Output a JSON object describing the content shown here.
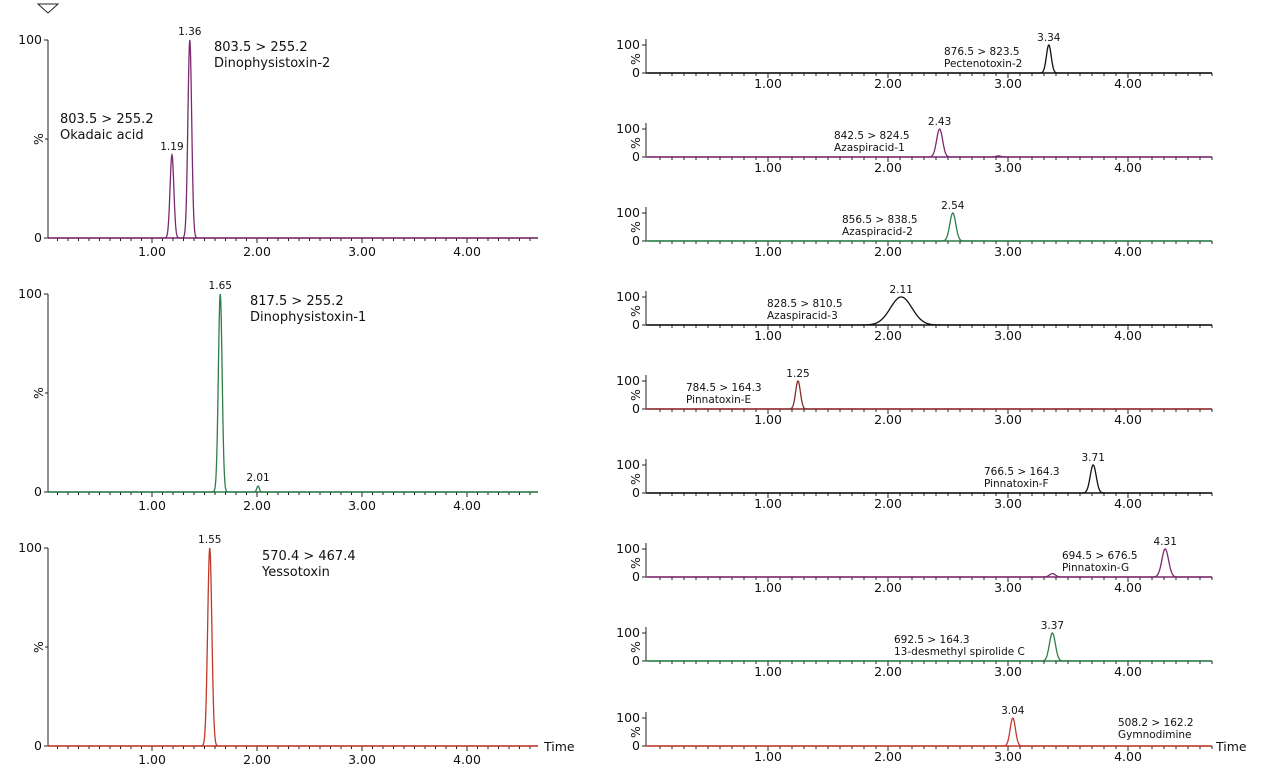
{
  "axis": {
    "x_tick_labels": [
      "1.00",
      "2.00",
      "3.00",
      "4.00"
    ],
    "y_max_label": "100",
    "y_zero_label": "0",
    "y_unit_label": "%",
    "x_title": "Time"
  },
  "chart_data": [
    {
      "type": "line",
      "x_range": [
        0,
        4.7
      ],
      "y_range": [
        0,
        100
      ],
      "annotations": [
        {
          "transition": "803.5 > 255.2",
          "compound": "Dinophysistoxin-2"
        },
        {
          "transition": "803.5 > 255.2",
          "compound": "Okadaic acid"
        }
      ],
      "peaks": [
        {
          "rt": 1.36,
          "rt_label": "1.36",
          "height": 100,
          "width": 0.018,
          "color": "#7a2a6e"
        },
        {
          "rt": 1.19,
          "rt_label": "1.19",
          "height": 42,
          "width": 0.018,
          "color": "#7a2a6e"
        }
      ],
      "baseline_color": "#7a2a6e"
    },
    {
      "type": "line",
      "x_range": [
        0,
        4.7
      ],
      "y_range": [
        0,
        100
      ],
      "annotations": [
        {
          "transition": "817.5 > 255.2",
          "compound": "Dinophysistoxin-1"
        }
      ],
      "peaks": [
        {
          "rt": 1.65,
          "rt_label": "1.65",
          "height": 100,
          "width": 0.018,
          "color": "#2e7d4a"
        },
        {
          "rt": 2.01,
          "rt_label": "2.01",
          "height": 3,
          "width": 0.012,
          "color": "#2e7d4a"
        }
      ],
      "baseline_color": "#2e7d4a"
    },
    {
      "type": "line",
      "x_range": [
        0,
        4.7
      ],
      "y_range": [
        0,
        100
      ],
      "annotations": [
        {
          "transition": "570.4 > 467.4",
          "compound": "Yessotoxin"
        }
      ],
      "peaks": [
        {
          "rt": 1.55,
          "rt_label": "1.55",
          "height": 100,
          "width": 0.02,
          "color": "#c0392b"
        }
      ],
      "baseline_color": "#c0392b"
    },
    {
      "type": "line",
      "x_range": [
        0,
        4.7
      ],
      "y_range": [
        0,
        100
      ],
      "annotations": [
        {
          "transition": "876.5 > 823.5",
          "compound": "Pectenotoxin-2"
        }
      ],
      "peaks": [
        {
          "rt": 3.34,
          "rt_label": "3.34",
          "height": 100,
          "width": 0.02,
          "color": "#111111"
        }
      ],
      "baseline_color": "#111111"
    },
    {
      "type": "line",
      "x_range": [
        0,
        4.7
      ],
      "y_range": [
        0,
        100
      ],
      "annotations": [
        {
          "transition": "842.5 > 824.5",
          "compound": "Azaspiracid-1"
        }
      ],
      "peaks": [
        {
          "rt": 2.43,
          "rt_label": "2.43",
          "height": 100,
          "width": 0.025,
          "color": "#7a2a6e"
        },
        {
          "rt": 2.92,
          "rt_label": "",
          "height": 4,
          "width": 0.02,
          "color": "#7a2a6e"
        }
      ],
      "baseline_color": "#7a2a6e"
    },
    {
      "type": "line",
      "x_range": [
        0,
        4.7
      ],
      "y_range": [
        0,
        100
      ],
      "annotations": [
        {
          "transition": "856.5 > 838.5",
          "compound": "Azaspiracid-2"
        }
      ],
      "peaks": [
        {
          "rt": 2.54,
          "rt_label": "2.54",
          "height": 100,
          "width": 0.025,
          "color": "#2e7d4a"
        }
      ],
      "baseline_color": "#2e7d4a"
    },
    {
      "type": "line",
      "x_range": [
        0,
        4.7
      ],
      "y_range": [
        0,
        100
      ],
      "annotations": [
        {
          "transition": "828.5 > 810.5",
          "compound": "Azaspiracid-3"
        }
      ],
      "peaks": [
        {
          "rt": 2.11,
          "rt_label": "2.11",
          "height": 100,
          "width": 0.09,
          "color": "#111111"
        }
      ],
      "baseline_color": "#111111"
    },
    {
      "type": "line",
      "x_range": [
        0,
        4.7
      ],
      "y_range": [
        0,
        100
      ],
      "annotations": [
        {
          "transition": "784.5 > 164.3",
          "compound": "Pinnatoxin-E"
        }
      ],
      "peaks": [
        {
          "rt": 1.25,
          "rt_label": "1.25",
          "height": 100,
          "width": 0.02,
          "color": "#8b2a2a"
        }
      ],
      "baseline_color": "#8b2a2a"
    },
    {
      "type": "line",
      "x_range": [
        0,
        4.7
      ],
      "y_range": [
        0,
        100
      ],
      "annotations": [
        {
          "transition": "766.5 > 164.3",
          "compound": "Pinnatoxin-F"
        }
      ],
      "peaks": [
        {
          "rt": 3.71,
          "rt_label": "3.71",
          "height": 100,
          "width": 0.025,
          "color": "#111111"
        }
      ],
      "baseline_color": "#111111"
    },
    {
      "type": "line",
      "x_range": [
        0,
        4.7
      ],
      "y_range": [
        0,
        100
      ],
      "annotations": [
        {
          "transition": "694.5 > 676.5",
          "compound": "Pinnatoxin-G"
        }
      ],
      "peaks": [
        {
          "rt": 4.31,
          "rt_label": "4.31",
          "height": 100,
          "width": 0.028,
          "color": "#7a2a6e"
        },
        {
          "rt": 3.37,
          "rt_label": "",
          "height": 12,
          "width": 0.025,
          "color": "#7a2a6e"
        }
      ],
      "baseline_color": "#7a2a6e"
    },
    {
      "type": "line",
      "x_range": [
        0,
        4.7
      ],
      "y_range": [
        0,
        100
      ],
      "annotations": [
        {
          "transition": "692.5 > 164.3",
          "compound": "13-desmethyl spirolide C"
        }
      ],
      "peaks": [
        {
          "rt": 3.37,
          "rt_label": "3.37",
          "height": 100,
          "width": 0.025,
          "color": "#2e7d4a"
        }
      ],
      "baseline_color": "#2e7d4a"
    },
    {
      "type": "line",
      "x_range": [
        0,
        4.7
      ],
      "y_range": [
        0,
        100
      ],
      "annotations": [
        {
          "transition": "508.2 > 162.2",
          "compound": "Gymnodimine"
        }
      ],
      "peaks": [
        {
          "rt": 3.04,
          "rt_label": "3.04",
          "height": 100,
          "width": 0.022,
          "color": "#c0392b"
        }
      ],
      "baseline_color": "#c0392b"
    }
  ]
}
